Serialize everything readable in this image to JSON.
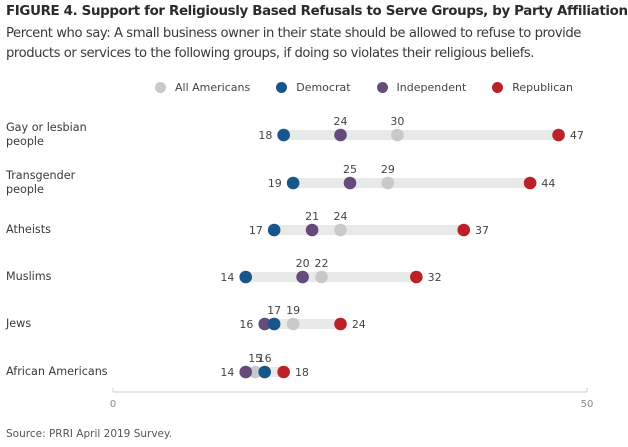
{
  "chart_data": {
    "type": "dot-range",
    "title": "FIGURE 4. Support for Religiously Based Refusals to Serve Groups, by Party Affiliation",
    "subtitle": "Percent who say: A small business owner in their state should be allowed to refuse to provide products or services to the following groups, if doing so violates their religious beliefs.",
    "xlim": [
      0,
      50
    ],
    "xticks": [
      "0",
      "50"
    ],
    "legend_position": "top",
    "series": [
      {
        "name": "All Americans",
        "color": "#c8c9cb",
        "values": [
          30,
          29,
          24,
          22,
          19,
          15
        ]
      },
      {
        "name": "Democrat",
        "color": "#17558a",
        "values": [
          18,
          19,
          17,
          14,
          17,
          16
        ]
      },
      {
        "name": "Independent",
        "color": "#644b7c",
        "values": [
          24,
          25,
          21,
          20,
          16,
          14
        ]
      },
      {
        "name": "Republican",
        "color": "#bb2127",
        "values": [
          47,
          44,
          37,
          32,
          24,
          18
        ]
      }
    ],
    "categories": [
      "Gay or lesbian people",
      "Transgender people",
      "Atheists",
      "Muslims",
      "Jews",
      "African Americans"
    ],
    "category_lines": [
      [
        "Gay or lesbian",
        "people"
      ],
      [
        "Transgender",
        "people"
      ],
      [
        "Atheists"
      ],
      [
        "Muslims"
      ],
      [
        "Jews"
      ],
      [
        "African Americans"
      ]
    ],
    "source": "Source: PRRI April 2019 Survey."
  },
  "colors": {
    "range_bar": "#e8e9e9",
    "axis": "#cfcfcf"
  }
}
